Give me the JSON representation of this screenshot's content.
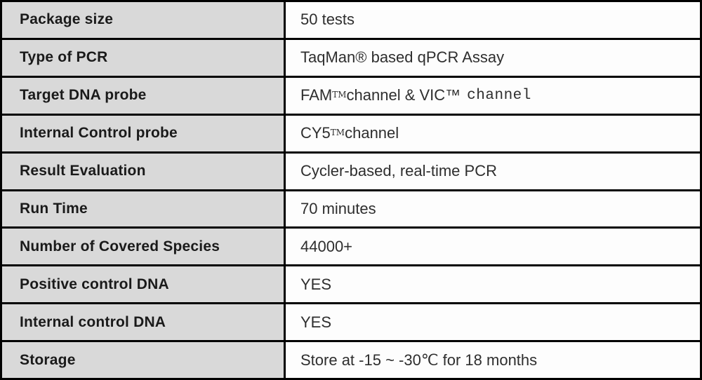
{
  "table": {
    "colors": {
      "border": "#000000",
      "label_background": "#d9d9d9",
      "value_background": "#fdfdfd"
    },
    "rows": [
      {
        "label": "Package size",
        "value": [
          {
            "t": "50 tests"
          }
        ]
      },
      {
        "label": "Type of PCR",
        "value": [
          {
            "t": "TaqMan® based qPCR Assay"
          }
        ]
      },
      {
        "label": "Target DNA probe",
        "value": [
          {
            "t": "FAM"
          },
          {
            "t": "TM",
            "style": "sup"
          },
          {
            "t": " channel & VIC™"
          },
          {
            "t": "channel",
            "style": "alt"
          }
        ]
      },
      {
        "label": "Internal Control probe",
        "value": [
          {
            "t": "CY5"
          },
          {
            "t": "TM",
            "style": "sup"
          },
          {
            "t": " channel"
          }
        ]
      },
      {
        "label": "Result Evaluation",
        "value": [
          {
            "t": "Cycler-based, real-time PCR"
          }
        ]
      },
      {
        "label": "Run Time",
        "value": [
          {
            "t": "70 minutes"
          }
        ]
      },
      {
        "label": "Number of Covered Species",
        "value": [
          {
            "t": "44000+"
          }
        ]
      },
      {
        "label": "Positive control DNA",
        "value": [
          {
            "t": "YES"
          }
        ]
      },
      {
        "label": "Internal control DNA",
        "value": [
          {
            "t": "YES"
          }
        ]
      },
      {
        "label": "Storage",
        "value": [
          {
            "t": "Store at -15 ~ -30℃ for 18 months"
          }
        ]
      }
    ]
  }
}
